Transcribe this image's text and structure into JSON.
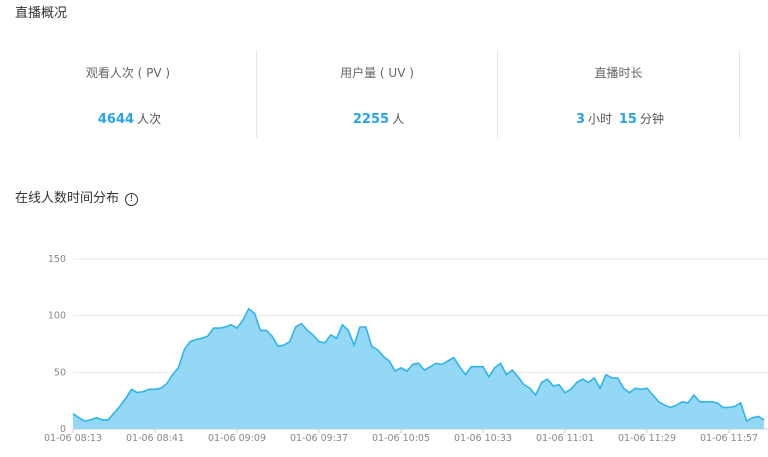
{
  "header": {
    "title": "直播概况"
  },
  "stats": [
    {
      "label": "观看人次 ( PV )",
      "value": "4644",
      "unit": "人次"
    },
    {
      "label": "用户量 ( UV )",
      "value": "2255",
      "unit": "人"
    },
    {
      "label": "直播时长",
      "hours": "3",
      "hours_unit": "小时",
      "minutes": "15",
      "minutes_unit": "分钟"
    }
  ],
  "chart_section": {
    "title": "在线人数时间分布",
    "info_icon": "info-circle-icon"
  },
  "colors": {
    "accent": "#29a3ee",
    "area_fill": "#95d8f6",
    "line": "#2db4ef"
  },
  "chart_data": {
    "type": "area",
    "ylim": [
      0,
      150
    ],
    "y_ticks": [
      "0",
      "50",
      "100",
      "150"
    ],
    "x_tick_labels": [
      "01-06 08:13",
      "01-06 08:41",
      "01-06 09:09",
      "01-06 09:37",
      "01-06 10:05",
      "01-06 10:33",
      "01-06 11:01",
      "01-06 11:29",
      "01-06 11:57"
    ],
    "grid": true,
    "x": [
      "08:13",
      "08:15",
      "08:17",
      "08:19",
      "08:21",
      "08:23",
      "08:25",
      "08:27",
      "08:29",
      "08:31",
      "08:33",
      "08:35",
      "08:37",
      "08:39",
      "08:41",
      "08:43",
      "08:45",
      "08:47",
      "08:49",
      "08:51",
      "08:53",
      "08:55",
      "08:57",
      "08:59",
      "09:01",
      "09:03",
      "09:05",
      "09:07",
      "09:09",
      "09:11",
      "09:13",
      "09:15",
      "09:17",
      "09:19",
      "09:21",
      "09:23",
      "09:25",
      "09:27",
      "09:29",
      "09:31",
      "09:33",
      "09:35",
      "09:37",
      "09:39",
      "09:41",
      "09:43",
      "09:45",
      "09:47",
      "09:49",
      "09:51",
      "09:53",
      "09:55",
      "09:57",
      "09:59",
      "10:01",
      "10:03",
      "10:05",
      "10:07",
      "10:09",
      "10:11",
      "10:13",
      "10:15",
      "10:17",
      "10:19",
      "10:21",
      "10:23",
      "10:25",
      "10:27",
      "10:29",
      "10:31",
      "10:33",
      "10:35",
      "10:37",
      "10:39",
      "10:41",
      "10:43",
      "10:45",
      "10:47",
      "10:49",
      "10:51",
      "10:53",
      "10:55",
      "10:57",
      "10:59",
      "11:01",
      "11:03",
      "11:05",
      "11:07",
      "11:09",
      "11:11",
      "11:13",
      "11:15",
      "11:17",
      "11:19",
      "11:21",
      "11:23",
      "11:25",
      "11:27",
      "11:29",
      "11:31",
      "11:33",
      "11:35",
      "11:37",
      "11:39",
      "11:41",
      "11:43",
      "11:45",
      "11:47",
      "11:49",
      "11:51",
      "11:53",
      "11:55",
      "11:57",
      "11:59",
      "12:01",
      "12:03",
      "12:05",
      "12:07",
      "12:09"
    ],
    "values": [
      13.5,
      10,
      7,
      8,
      10,
      8,
      8,
      14,
      20,
      27,
      35,
      32,
      33,
      35,
      35,
      36,
      40,
      48,
      54,
      70,
      77,
      79,
      80,
      82,
      89,
      89,
      90,
      92,
      89,
      96,
      106,
      102,
      87,
      87,
      82,
      73,
      74,
      77,
      90,
      93,
      87,
      83,
      77,
      76,
      83,
      80,
      92,
      87,
      74,
      90,
      90,
      73,
      70,
      64,
      60,
      51,
      54,
      51,
      57,
      58,
      52,
      55,
      58,
      57,
      60,
      63,
      55,
      48,
      55,
      55,
      55,
      46,
      54,
      58,
      48,
      52,
      46,
      39,
      36,
      30,
      41,
      44,
      38,
      39,
      32,
      35,
      41,
      44,
      41,
      45,
      36,
      48,
      45,
      45,
      36,
      32,
      36,
      35,
      36,
      30,
      24,
      21,
      19,
      21,
      24,
      23,
      30,
      24,
      24,
      24,
      23,
      19,
      19,
      20,
      23,
      7,
      10,
      11,
      8
    ]
  }
}
